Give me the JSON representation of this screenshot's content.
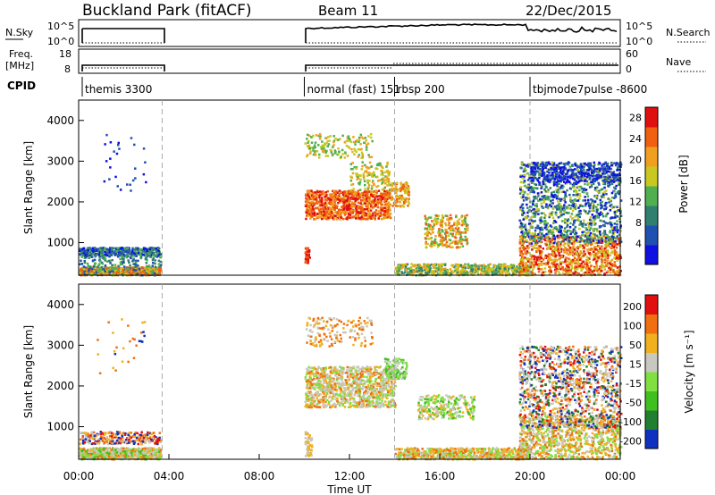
{
  "header": {
    "station": "Buckland Park (fitACF)",
    "beam": "Beam 11",
    "date": "22/Dec/2015"
  },
  "nsky_panel": {
    "label": "N.Sky",
    "ticks": [
      "10^5",
      "10^0"
    ],
    "right_label": "N.Search",
    "right_ticks": [
      "10^5",
      "10^0"
    ]
  },
  "freq_panel": {
    "label_line1": "Freq.",
    "label_line2": "[MHz]",
    "ticks": [
      "18",
      "8"
    ],
    "right_label": "Nave",
    "right_ticks": [
      "60",
      "0"
    ]
  },
  "cpid": {
    "label": "CPID",
    "modes": [
      {
        "label": "themis 3300",
        "start_hour": 0
      },
      {
        "label": "normal (fast) 151",
        "start_hour": 10
      },
      {
        "label": "rbsp 200",
        "start_hour": 14
      },
      {
        "label": "tbjmode7pulse -8600",
        "start_hour": 20
      }
    ]
  },
  "chart_data": [
    {
      "type": "heatmap",
      "name": "power",
      "ylabel": "Slant Range [km]",
      "yticks": [
        "1000",
        "2000",
        "3000",
        "4000"
      ],
      "ylim": [
        200,
        4500
      ],
      "xlim": [
        0,
        24
      ],
      "colorbar": {
        "label": "Power [dB]",
        "ticks": [
          "4",
          "8",
          "12",
          "16",
          "20",
          "24",
          "28"
        ],
        "range": [
          0,
          30
        ],
        "colors": [
          "#1010e0",
          "#2050b0",
          "#308070",
          "#50b050",
          "#c8c820",
          "#f0a020",
          "#f06010",
          "#e01010"
        ]
      },
      "data_windows_hours": [
        [
          0,
          3.7
        ],
        [
          10,
          24
        ]
      ]
    },
    {
      "type": "heatmap",
      "name": "velocity",
      "ylabel": "Slant Range [km]",
      "yticks": [
        "1000",
        "2000",
        "3000",
        "4000"
      ],
      "ylim": [
        200,
        4500
      ],
      "xlim": [
        0,
        24
      ],
      "colorbar": {
        "label": "Velocity [m s⁻¹]",
        "ticks": [
          "200",
          "100",
          "50",
          "15",
          "-15",
          "-50",
          "-100",
          "-200"
        ],
        "colors": [
          "#1030c0",
          "#208030",
          "#40c020",
          "#80e040",
          "#c8c8c0",
          "#f0b020",
          "#f07010",
          "#e01010"
        ]
      },
      "data_windows_hours": [
        [
          0,
          3.7
        ],
        [
          10,
          24
        ]
      ]
    }
  ],
  "xaxis": {
    "label": "Time UT",
    "ticks": [
      "00:00",
      "04:00",
      "08:00",
      "12:00",
      "16:00",
      "20:00",
      "00:00"
    ],
    "tick_hours": [
      0,
      4,
      8,
      12,
      16,
      20,
      24
    ]
  }
}
